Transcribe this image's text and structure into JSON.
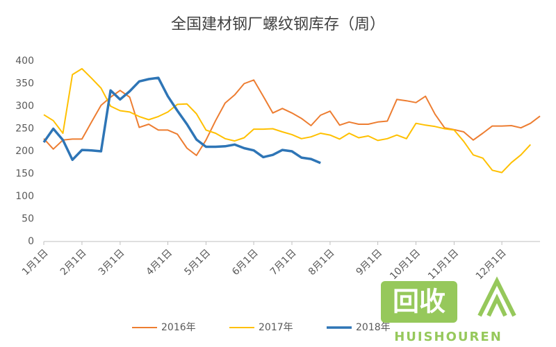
{
  "chart_data": {
    "type": "line",
    "title": "全国建材钢厂螺纹钢库存（周）",
    "categories": [
      "1月1日",
      null,
      null,
      null,
      "2月1日",
      null,
      null,
      null,
      "3月1日",
      null,
      null,
      null,
      null,
      "4月1日",
      null,
      null,
      null,
      "5月1日",
      null,
      null,
      null,
      null,
      "6月1日",
      null,
      null,
      null,
      "7月1日",
      null,
      null,
      null,
      "8月1日",
      null,
      null,
      null,
      null,
      "9月1日",
      null,
      null,
      null,
      "10月1日",
      null,
      null,
      null,
      "11月1日",
      null,
      null,
      null,
      null,
      "12月1日",
      null,
      null,
      null,
      null
    ],
    "series": [
      {
        "name": "2016年",
        "color": "#ed7d31",
        "values": [
          228,
          205,
          225,
          227,
          227,
          265,
          302,
          320,
          335,
          320,
          253,
          260,
          247,
          247,
          238,
          207,
          191,
          225,
          268,
          307,
          325,
          350,
          358,
          322,
          285,
          295,
          285,
          273,
          257,
          280,
          289,
          258,
          265,
          260,
          260,
          265,
          267,
          315,
          312,
          308,
          322,
          282,
          252,
          248,
          243,
          225,
          240,
          256,
          256,
          257,
          252,
          262,
          278
        ]
      },
      {
        "name": "2017年",
        "color": "#ffc000",
        "values": [
          281,
          268,
          240,
          370,
          383,
          362,
          340,
          300,
          290,
          287,
          277,
          270,
          277,
          287,
          304,
          305,
          283,
          247,
          240,
          228,
          223,
          230,
          249,
          249,
          250,
          243,
          237,
          228,
          232,
          240,
          236,
          227,
          240,
          230,
          234,
          224,
          228,
          236,
          228,
          262,
          258,
          255,
          250,
          247,
          222,
          192,
          185,
          158,
          153,
          175,
          192,
          215,
          null
        ]
      },
      {
        "name": "2018年",
        "color": "#2e75b6",
        "values": [
          220,
          250,
          225,
          181,
          203,
          202,
          200,
          335,
          315,
          333,
          355,
          360,
          363,
          322,
          290,
          260,
          226,
          210,
          210,
          211,
          215,
          207,
          202,
          187,
          192,
          203,
          200,
          186,
          183,
          174,
          null,
          null,
          null,
          null,
          null,
          null,
          null,
          null,
          null,
          null,
          null,
          null,
          null,
          null,
          null,
          null,
          null,
          null,
          null,
          null,
          null,
          null,
          null
        ]
      }
    ],
    "ylim": [
      0,
      400
    ],
    "yticks": [
      0,
      50,
      100,
      150,
      200,
      250,
      300,
      350,
      400
    ],
    "grid": false,
    "legend": "bottom",
    "watermark": {
      "logo": "回收",
      "text": "HUISHOUREN"
    }
  }
}
